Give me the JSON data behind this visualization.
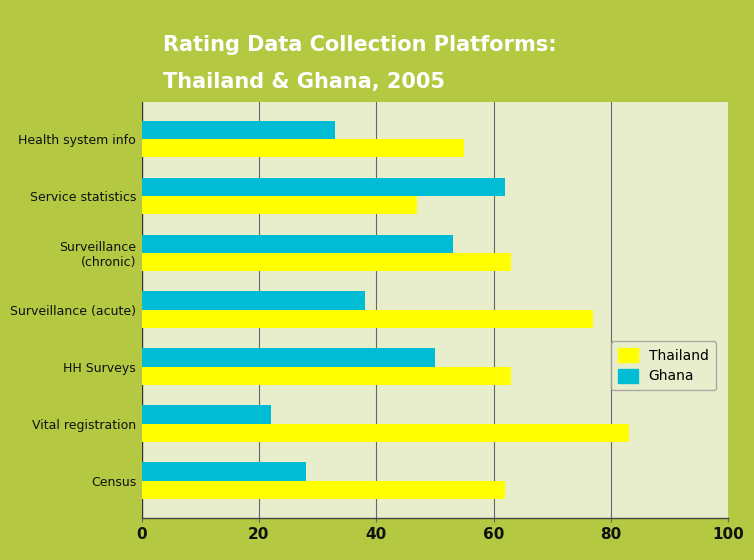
{
  "title_line1": "Rating Data Collection Platforms:",
  "title_line2": "Thailand & Ghana, 2005",
  "title_bg_color": "#6aaa1e",
  "title_text_color": "#ffffff",
  "outer_bg_color": "#b5c842",
  "plot_bg_color": "#e8eecc",
  "categories": [
    "Health system info",
    "Service statistics",
    "Surveillance\n(chronic)",
    "Surveillance (acute)",
    "HH Surveys",
    "Vital registration",
    "Census"
  ],
  "thailand_values": [
    55,
    47,
    63,
    77,
    63,
    83,
    62
  ],
  "ghana_values": [
    33,
    62,
    53,
    38,
    50,
    22,
    28
  ],
  "thailand_color": "#ffff00",
  "ghana_color": "#00bcd4",
  "xlim": [
    0,
    100
  ],
  "xticks": [
    0,
    20,
    40,
    60,
    80,
    100
  ],
  "bar_height": 0.32,
  "legend_thailand": "Thailand",
  "legend_ghana": "Ghana"
}
